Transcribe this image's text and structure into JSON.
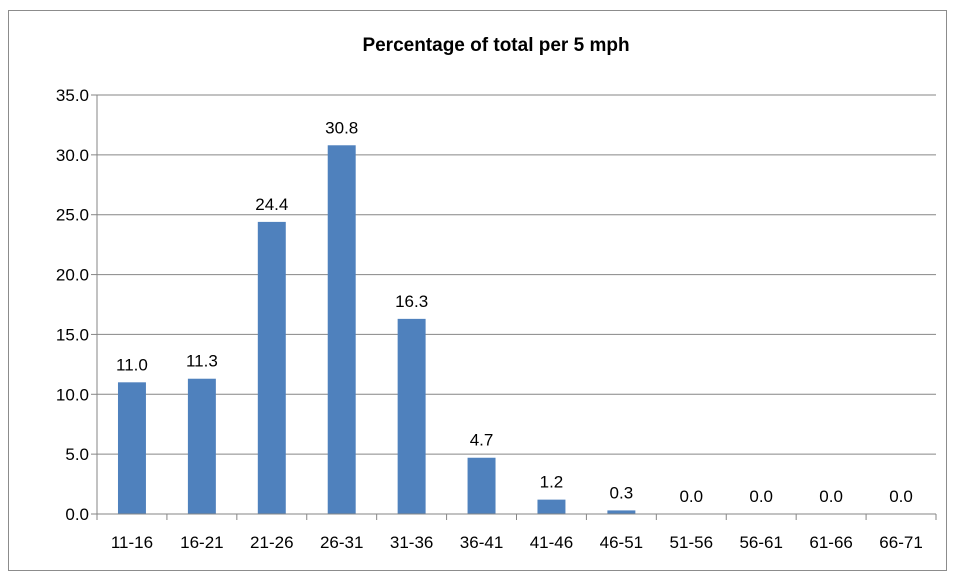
{
  "chart_data": {
    "type": "bar",
    "title": "Percentage of total per 5 mph",
    "categories": [
      "11-16",
      "16-21",
      "21-26",
      "26-31",
      "31-36",
      "36-41",
      "41-46",
      "46-51",
      "51-56",
      "56-61",
      "61-66",
      "66-71"
    ],
    "values": [
      11.0,
      11.3,
      24.4,
      30.8,
      16.3,
      4.7,
      1.2,
      0.3,
      0.0,
      0.0,
      0.0,
      0.0
    ],
    "data_labels": [
      "11.0",
      "11.3",
      "24.4",
      "30.8",
      "16.3",
      "4.7",
      "1.2",
      "0.3",
      "0.0",
      "0.0",
      "0.0",
      "0.0"
    ],
    "y_ticks": [
      "0.0",
      "5.0",
      "10.0",
      "15.0",
      "20.0",
      "25.0",
      "30.0",
      "35.0"
    ],
    "ylim": [
      0,
      35
    ],
    "xlabel": "",
    "ylabel": "",
    "grid": true,
    "legend": "none",
    "bar_color": "#4f81bd"
  }
}
